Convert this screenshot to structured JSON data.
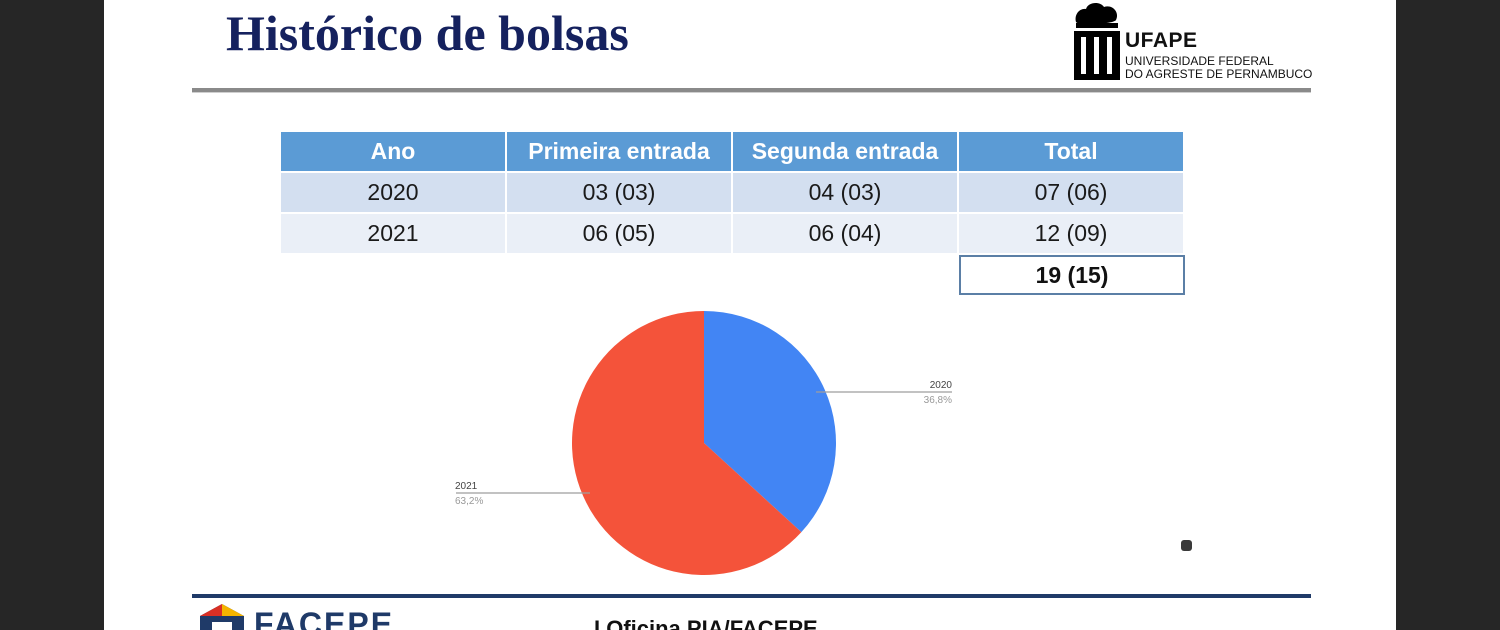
{
  "slide": {
    "title": "Histórico de bolsas",
    "logo": {
      "name": "UFAPE",
      "line1": "UNIVERSIDADE FEDERAL",
      "line2": "DO AGRESTE DE PERNAMBUCO"
    },
    "footer": {
      "brand": "FACEPE",
      "text": "I Oficina PIA/FACEPE"
    }
  },
  "table": {
    "headers": [
      "Ano",
      "Primeira entrada",
      "Segunda entrada",
      "Total"
    ],
    "rows": [
      [
        "2020",
        "03 (03)",
        "04 (03)",
        "07 (06)"
      ],
      [
        "2021",
        "06 (05)",
        "06 (04)",
        "12 (09)"
      ]
    ],
    "grand_total": "19 (15)"
  },
  "chart_data": {
    "type": "pie",
    "slices": [
      {
        "label": "2020",
        "value": 36.8,
        "display": "36,8%",
        "color": "#4285f4"
      },
      {
        "label": "2021",
        "value": 63.2,
        "display": "63,2%",
        "color": "#f4533a"
      }
    ],
    "start_angle": "12 o'clock",
    "direction": "clockwise"
  },
  "colors": {
    "title": "#15215e",
    "table_header": "#5b9bd5",
    "row_1": "#d3dff0",
    "row_2": "#eaeff7",
    "bottom_rule": "#1f3a68"
  }
}
